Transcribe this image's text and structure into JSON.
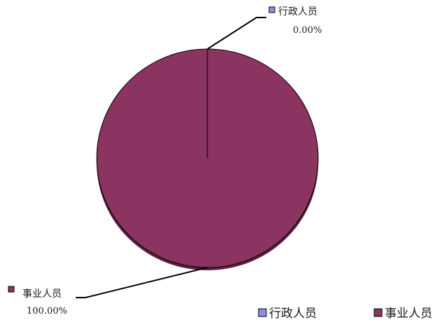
{
  "chart_data": {
    "type": "pie",
    "categories": [
      "行政人员",
      "事业人员"
    ],
    "values": [
      0,
      100
    ],
    "series": [
      {
        "values": [
          0,
          100
        ]
      }
    ],
    "data_labels": [
      {
        "name": "行政人员",
        "value": "0.00%"
      },
      {
        "name": "事业人员",
        "value": "100.00%"
      }
    ],
    "colors": {
      "行政人员": "#8e8ee6",
      "事业人员": "#8b3361"
    },
    "legend": {
      "placement": "bottom-right",
      "entries": [
        "行政人员",
        "事业人员"
      ]
    },
    "title": ""
  }
}
